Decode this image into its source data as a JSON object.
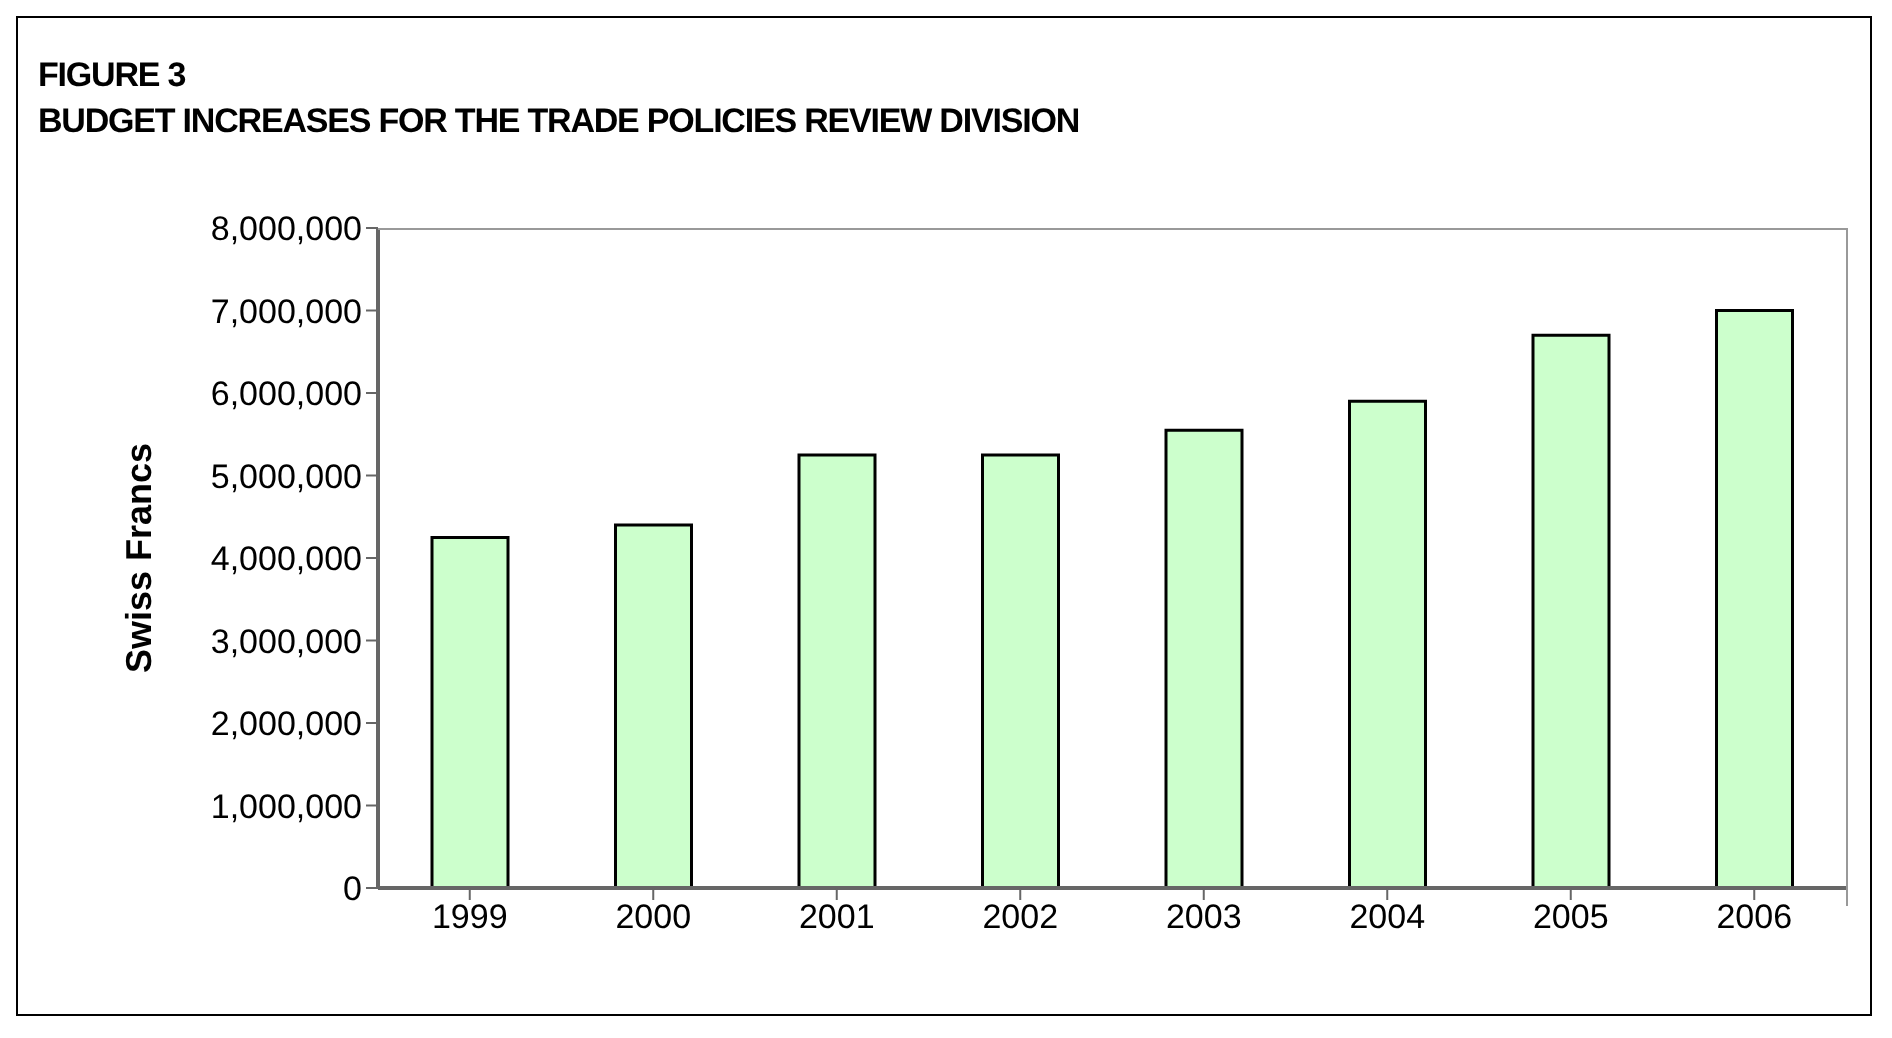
{
  "chart_data": {
    "type": "bar",
    "title": "FIGURE 3",
    "subtitle": "BUDGET INCREASES FOR THE TRADE POLICIES REVIEW DIVISION",
    "ylabel": "Swiss Francs",
    "categories": [
      "1999",
      "2000",
      "2001",
      "2002",
      "2003",
      "2004",
      "2005",
      "2006"
    ],
    "values": [
      4250000,
      4400000,
      5250000,
      5250000,
      5550000,
      5900000,
      6700000,
      7000000
    ],
    "color": "#ccffcc",
    "ylim": [
      0,
      8000000
    ],
    "yticks": [
      0,
      {
        "value": 1000000,
        "label": "1,000,000"
      },
      {
        "value": 2000000,
        "label": "2,000,000"
      },
      {
        "value": 3000000,
        "label": "3,000,000"
      },
      {
        "value": 4000000,
        "label": "4,000,000"
      },
      {
        "value": 5000000,
        "label": "5,000,000"
      },
      {
        "value": 6000000,
        "label": "6,000,000"
      },
      {
        "value": 7000000,
        "label": "7,000,000"
      },
      {
        "value": 8000000,
        "label": "8,000,000"
      }
    ]
  }
}
